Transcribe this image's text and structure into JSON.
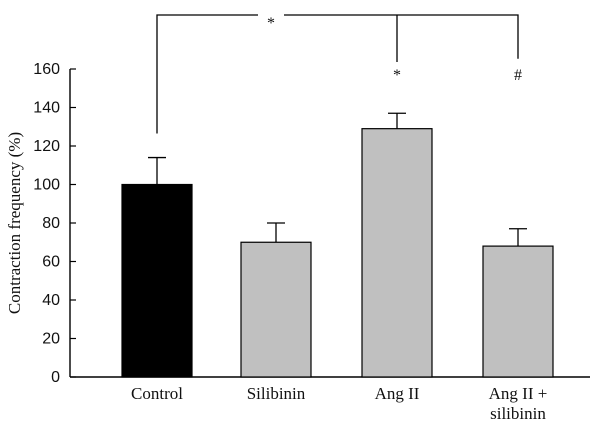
{
  "chart_data": {
    "type": "bar",
    "title": "",
    "xlabel": "",
    "ylabel": "Contraction frequency (%)",
    "ylim": [
      0,
      160
    ],
    "yticks": [
      0,
      20,
      40,
      60,
      80,
      100,
      120,
      140,
      160
    ],
    "categories": [
      [
        "Control"
      ],
      [
        "Silibinin"
      ],
      [
        "Ang II"
      ],
      [
        "Ang II +",
        "silibinin"
      ]
    ],
    "values": [
      100,
      70,
      129,
      68
    ],
    "errors": [
      14,
      10,
      8,
      9
    ],
    "bar_colors": [
      "#000000",
      "#c0c0c0",
      "#c0c0c0",
      "#c0c0c0"
    ],
    "significance": {
      "bracket_control_vs_angii_label": "*",
      "angii_label": "*",
      "angii_silibinin_label": "#"
    },
    "grid": false,
    "legend": "none"
  }
}
